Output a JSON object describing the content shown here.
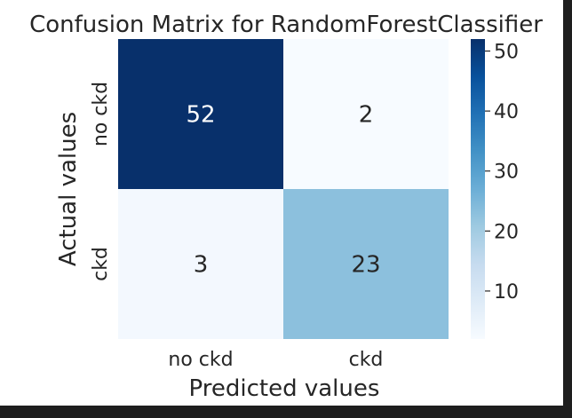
{
  "chart_data": {
    "type": "heatmap",
    "title": "Confusion Matrix for RandomForestClassifier",
    "xlabel": "Predicted values",
    "ylabel": "Actual values",
    "x_categories": [
      "no ckd",
      "ckd"
    ],
    "y_categories": [
      "no ckd",
      "ckd"
    ],
    "values": [
      [
        52,
        2
      ],
      [
        3,
        23
      ]
    ],
    "annotations": [
      "52",
      "2",
      "3",
      "23"
    ],
    "colormap": "Blues",
    "vmin": 2,
    "vmax": 52,
    "colorbar_ticks": [
      "10",
      "20",
      "30",
      "40",
      "50"
    ],
    "colorbar_tick_values": [
      10,
      20,
      30,
      40,
      50
    ],
    "grid": false
  }
}
